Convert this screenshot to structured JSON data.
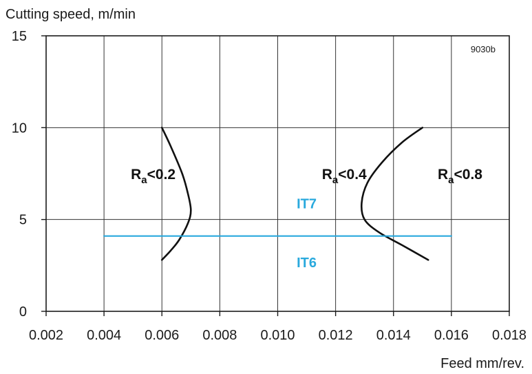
{
  "chart_data": {
    "type": "line",
    "ylabel": "Cutting speed, m/min",
    "xlabel": "Feed mm/rev.",
    "code": "9030b",
    "xlim": [
      0.002,
      0.018
    ],
    "ylim": [
      0,
      15
    ],
    "x_ticks": [
      "0.002",
      "0.004",
      "0.006",
      "0.008",
      "0.010",
      "0.012",
      "0.014",
      "0.016",
      "0.018"
    ],
    "y_ticks": [
      "0",
      "5",
      "10",
      "15"
    ],
    "grid": true,
    "colors": {
      "curve": "#111111",
      "it_line": "#29a9dd",
      "grid": "#333333"
    },
    "series": [
      {
        "x": [
          0.006,
          0.0063,
          0.0067,
          0.0069,
          0.007,
          0.0069,
          0.0066,
          0.0063,
          0.006
        ],
        "y": [
          10.0,
          9.0,
          7.5,
          6.4,
          5.5,
          4.8,
          3.9,
          3.3,
          2.8
        ]
      },
      {
        "x": [
          0.015,
          0.0143,
          0.0136,
          0.0131,
          0.0129,
          0.013,
          0.0135,
          0.0143,
          0.0152
        ],
        "y": [
          10.0,
          9.2,
          8.1,
          7.0,
          5.9,
          5.0,
          4.3,
          3.6,
          2.8
        ]
      },
      {
        "x": [
          0.004,
          0.016
        ],
        "y": [
          4.1,
          4.1
        ]
      }
    ],
    "annotations": [
      {
        "base": "R",
        "sub": "a",
        "rest": "<0.2",
        "x": 0.0057,
        "y": 7.2
      },
      {
        "base": "R",
        "sub": "a",
        "rest": "<0.4",
        "x": 0.0123,
        "y": 7.2
      },
      {
        "base": "R",
        "sub": "a",
        "rest": "<0.8",
        "x": 0.0163,
        "y": 7.2
      },
      {
        "text": "IT7",
        "x": 0.011,
        "y": 5.6
      },
      {
        "text": "IT6",
        "x": 0.011,
        "y": 2.4
      }
    ]
  }
}
